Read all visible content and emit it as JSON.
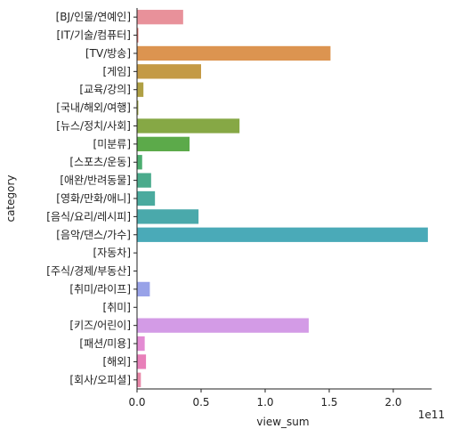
{
  "chart_data": {
    "type": "bar",
    "orientation": "horizontal",
    "title": "",
    "xlabel": "view_sum",
    "ylabel": "category",
    "x_offset_label": "1e11",
    "x_ticks": [
      0.0,
      0.5,
      1.0,
      1.5,
      2.0
    ],
    "x_tick_labels": [
      "0.0",
      "0.5",
      "1.0",
      "1.5",
      "2.0"
    ],
    "xlim": [
      0,
      2.3
    ],
    "x_scale_note": "",
    "grid": false,
    "legend": "none",
    "categories": [
      "[BJ/인물/연예인]",
      "[IT/기술/컴퓨터]",
      "[TV/방송]",
      "[게임]",
      "[교육/강의]",
      "[국내/해외/여행]",
      "[뉴스/정치/사회]",
      "[미분류]",
      "[스포츠/운동]",
      "[애완/반려동물]",
      "[영화/만화/애니]",
      "[음식/요리/레시피]",
      "[음악/댄스/가수]",
      "[자동차]",
      "[주식/경제/부동산]",
      "[취미/라이프]",
      "[취미]",
      "[키즈/어린이]",
      "[패션/미용]",
      "[해외]",
      "[회사/오피셜]"
    ],
    "values": [
      0.36,
      0.01,
      1.51,
      0.5,
      0.05,
      0.01,
      0.8,
      0.41,
      0.04,
      0.11,
      0.14,
      0.48,
      2.27,
      0.0,
      0.0,
      0.1,
      0.0,
      1.34,
      0.06,
      0.07,
      0.03
    ],
    "colors": [
      "#e8919a",
      "#e1706b",
      "#dc9450",
      "#c49a45",
      "#b0a044",
      "#9fa53f",
      "#86a845",
      "#5caa4a",
      "#4cad6f",
      "#4aab8c",
      "#4aaa9e",
      "#4aa9ab",
      "#4aaab8",
      "#4ea6c6",
      "#65a1d6",
      "#98a2e8",
      "#b79ce9",
      "#d39be6",
      "#e38bd3",
      "#e87fb9",
      "#e887a8"
    ]
  }
}
